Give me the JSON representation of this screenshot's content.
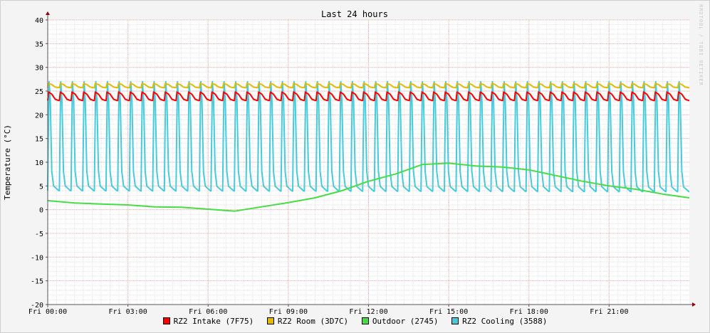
{
  "chart_data": {
    "type": "line",
    "title": "Last 24 hours",
    "ylabel": "Temperature (°C)",
    "xlabel": "",
    "ylim": [
      -20,
      40
    ],
    "yticks": [
      40,
      35,
      30,
      25,
      20,
      15,
      10,
      5,
      0,
      -5,
      -10,
      -15,
      -20
    ],
    "xlim_hours": [
      0,
      24
    ],
    "xtick_hours": [
      0,
      3,
      6,
      9,
      12,
      15,
      18,
      21
    ],
    "xtick_labels": [
      "Fri 00:00",
      "Fri 03:00",
      "Fri 06:00",
      "Fri 09:00",
      "Fri 12:00",
      "Fri 15:00",
      "Fri 18:00",
      "Fri 21:00"
    ],
    "grid": true,
    "legend_position": "bottom",
    "watermark": "RRDTOOL / TOBI OETIKER",
    "series": [
      {
        "name": "RZ2 Intake (7F75)",
        "color": "#ff0000",
        "kind": "sawtooth",
        "periods": 55,
        "low": 23.0,
        "high": 24.8
      },
      {
        "name": "RZ2 Room (3D7C)",
        "color": "#e6b800",
        "kind": "sawtooth",
        "periods": 55,
        "low": 25.7,
        "high": 26.6
      },
      {
        "name": "Outdoor (2745)",
        "color": "#44dd44",
        "kind": "line",
        "hours": [
          0,
          1,
          2,
          3,
          4,
          5,
          6,
          7,
          8,
          9,
          10,
          11,
          12,
          13,
          14,
          15,
          16,
          17,
          18,
          19,
          20,
          21,
          22,
          23,
          24
        ],
        "values": [
          1.9,
          1.4,
          1.2,
          1.0,
          0.6,
          0.5,
          0.1,
          -0.3,
          0.6,
          1.5,
          2.5,
          4.0,
          6.0,
          7.5,
          9.5,
          9.8,
          9.2,
          9.0,
          8.4,
          7.2,
          6.0,
          5.0,
          4.3,
          3.3,
          2.5
        ]
      },
      {
        "name": "RZ2 Cooling (3588)",
        "color": "#44ccdd",
        "kind": "pulse",
        "periods": 55,
        "low_start": 4.0,
        "low_end": 3.8,
        "high": 27.0
      }
    ]
  }
}
